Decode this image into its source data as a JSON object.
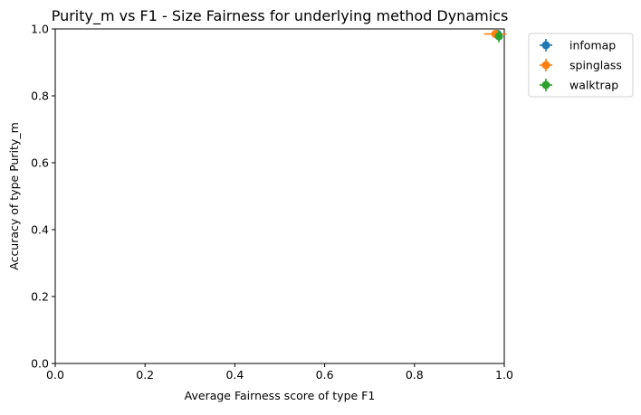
{
  "chart_data": {
    "type": "scatter",
    "title": "Purity_m vs F1 - Size Fairness for underlying method Dynamics",
    "xlabel": "Average Fairness score of type F1",
    "ylabel": "Accuracy of type Purity_m",
    "xlim": [
      0.0,
      1.0
    ],
    "ylim": [
      0.0,
      1.0
    ],
    "xticks": [
      "0.0",
      "0.2",
      "0.4",
      "0.6",
      "0.8",
      "1.0"
    ],
    "yticks": [
      "0.0",
      "0.2",
      "0.4",
      "0.6",
      "0.8",
      "1.0"
    ],
    "grid": false,
    "legend_position": "outside top-right",
    "series": [
      {
        "name": "infomap",
        "color": "#1f77b4",
        "x": 0.985,
        "y": 0.985,
        "xerr": 0.0,
        "yerr": 0.0
      },
      {
        "name": "spinglass",
        "color": "#ff7f0e",
        "x": 0.98,
        "y": 0.985,
        "xerr": 0.025,
        "yerr": 0.008
      },
      {
        "name": "walktrap",
        "color": "#2ca02c",
        "x": 0.988,
        "y": 0.978,
        "xerr": 0.005,
        "yerr": 0.018
      }
    ]
  }
}
